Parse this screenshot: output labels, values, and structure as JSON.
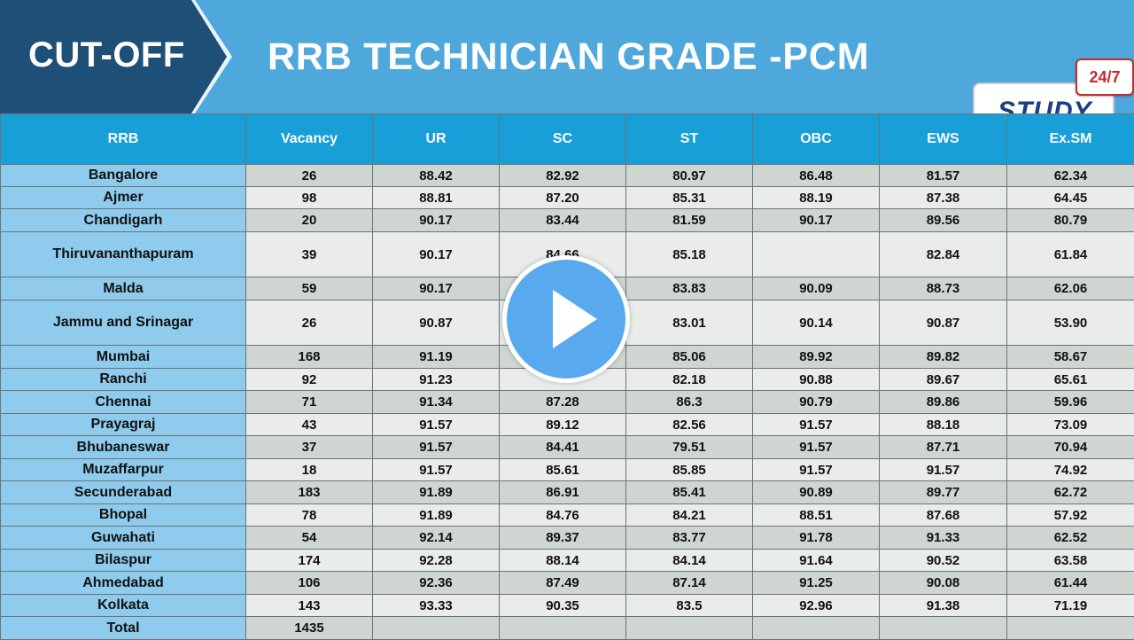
{
  "header": {
    "tag_label": "CUT-OFF",
    "title": "RRB TECHNICIAN GRADE -PCM",
    "badge_text": "24/7",
    "logo_text": "STUDY"
  },
  "table": {
    "columns": [
      "RRB",
      "Vacancy",
      "UR",
      "SC",
      "ST",
      "OBC",
      "EWS",
      "Ex.SM"
    ],
    "rows": [
      {
        "rrb": "Bangalore",
        "vacancy": "26",
        "ur": "88.42",
        "sc": "82.92",
        "st": "80.97",
        "obc": "86.48",
        "ews": "81.57",
        "exsm": "62.34",
        "h": 25
      },
      {
        "rrb": "Ajmer",
        "vacancy": "98",
        "ur": "88.81",
        "sc": "87.20",
        "st": "85.31",
        "obc": "88.19",
        "ews": "87.38",
        "exsm": "64.45",
        "h": 25
      },
      {
        "rrb": "Chandigarh",
        "vacancy": "20",
        "ur": "90.17",
        "sc": "83.44",
        "st": "81.59",
        "obc": "90.17",
        "ews": "89.56",
        "exsm": "80.79",
        "h": 26
      },
      {
        "rrb": "Thiruvananthapuram",
        "vacancy": "39",
        "ur": "90.17",
        "sc": "84.66",
        "st": "85.18",
        "obc": "",
        "ews": "82.84",
        "exsm": "61.84",
        "h": 51
      },
      {
        "rrb": "Malda",
        "vacancy": "59",
        "ur": "90.17",
        "sc": "",
        "st": "83.83",
        "obc": "90.09",
        "ews": "88.73",
        "exsm": "62.06",
        "h": 26
      },
      {
        "rrb": "Jammu and Srinagar",
        "vacancy": "26",
        "ur": "90.87",
        "sc": "",
        "st": "83.01",
        "obc": "90.14",
        "ews": "90.87",
        "exsm": "53.90",
        "h": 51
      },
      {
        "rrb": "Mumbai",
        "vacancy": "168",
        "ur": "91.19",
        "sc": "",
        "st": "85.06",
        "obc": "89.92",
        "ews": "89.82",
        "exsm": "58.67",
        "h": 26
      },
      {
        "rrb": "Ranchi",
        "vacancy": "92",
        "ur": "91.23",
        "sc": "",
        "st": "82.18",
        "obc": "90.88",
        "ews": "89.67",
        "exsm": "65.61",
        "h": 25
      },
      {
        "rrb": "Chennai",
        "vacancy": "71",
        "ur": "91.34",
        "sc": "87.28",
        "st": "86.3",
        "obc": "90.79",
        "ews": "89.86",
        "exsm": "59.96",
        "h": 26
      },
      {
        "rrb": "Prayagraj",
        "vacancy": "43",
        "ur": "91.57",
        "sc": "89.12",
        "st": "82.56",
        "obc": "91.57",
        "ews": "88.18",
        "exsm": "73.09",
        "h": 25
      },
      {
        "rrb": "Bhubaneswar",
        "vacancy": "37",
        "ur": "91.57",
        "sc": "84.41",
        "st": "79.51",
        "obc": "91.57",
        "ews": "87.71",
        "exsm": "70.94",
        "h": 26
      },
      {
        "rrb": "Muzaffarpur",
        "vacancy": "18",
        "ur": "91.57",
        "sc": "85.61",
        "st": "85.85",
        "obc": "91.57",
        "ews": "91.57",
        "exsm": "74.92",
        "h": 25
      },
      {
        "rrb": "Secunderabad",
        "vacancy": "183",
        "ur": "91.89",
        "sc": "86.91",
        "st": "85.41",
        "obc": "90.89",
        "ews": "89.77",
        "exsm": "62.72",
        "h": 26
      },
      {
        "rrb": "Bhopal",
        "vacancy": "78",
        "ur": "91.89",
        "sc": "84.76",
        "st": "84.21",
        "obc": "88.51",
        "ews": "87.68",
        "exsm": "57.92",
        "h": 25
      },
      {
        "rrb": "Guwahati",
        "vacancy": "54",
        "ur": "92.14",
        "sc": "89.37",
        "st": "83.77",
        "obc": "91.78",
        "ews": "91.33",
        "exsm": "62.52",
        "h": 26
      },
      {
        "rrb": "Bilaspur",
        "vacancy": "174",
        "ur": "92.28",
        "sc": "88.14",
        "st": "84.14",
        "obc": "91.64",
        "ews": "90.52",
        "exsm": "63.58",
        "h": 25
      },
      {
        "rrb": "Ahmedabad",
        "vacancy": "106",
        "ur": "92.36",
        "sc": "87.49",
        "st": "87.14",
        "obc": "91.25",
        "ews": "90.08",
        "exsm": "61.44",
        "h": 26
      },
      {
        "rrb": "Kolkata",
        "vacancy": "143",
        "ur": "93.33",
        "sc": "90.35",
        "st": "83.5",
        "obc": "92.96",
        "ews": "91.38",
        "exsm": "71.19",
        "h": 25
      },
      {
        "rrb": "Total",
        "vacancy": "1435",
        "ur": "",
        "sc": "",
        "st": "",
        "obc": "",
        "ews": "",
        "exsm": "",
        "h": 26
      }
    ]
  },
  "video_overlay": {
    "icon": "play-icon"
  }
}
